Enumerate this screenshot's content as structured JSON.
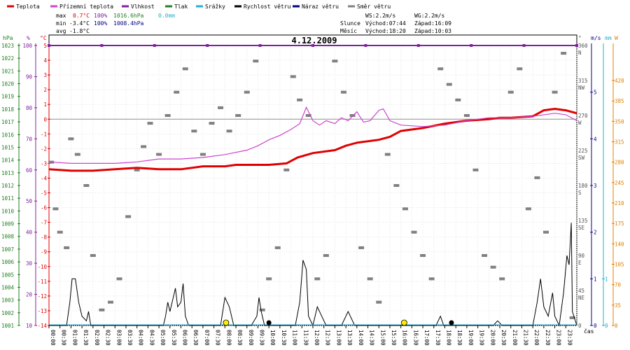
{
  "legend": [
    {
      "label": "Teplota",
      "color": "#e00000"
    },
    {
      "label": "Přízemní teplota",
      "color": "#cc44cc"
    },
    {
      "label": "Vlhkost",
      "color": "#8020a0"
    },
    {
      "label": "Tlak",
      "color": "#208020"
    },
    {
      "label": "Srážky",
      "color": "#20b0d0"
    },
    {
      "label": "Rychlost větru",
      "color": "#000000"
    },
    {
      "label": "Náraz větru",
      "color": "#000080"
    },
    {
      "label": "Směr větru",
      "color": "#808080"
    }
  ],
  "stats": {
    "max_label": "max",
    "max_temp": "0.7°C",
    "max_hum": "100%",
    "max_press": "1016.6hPa",
    "max_rain": "0.0mm",
    "min_label": "min",
    "min_temp": "-3.4°C",
    "min_hum": "100%",
    "min_press": "1008.4hPa",
    "avg_label": "avg",
    "avg_temp": "-1.8°C"
  },
  "wind_info": {
    "ws": "WS:2.2m/s",
    "wg": "WG:2.2m/s"
  },
  "astro": {
    "sun_label": "Slunce",
    "sun_rise": "Východ:07:44",
    "sun_set": "Západ:16:09",
    "moon_label": "Měsíc",
    "moon_rise": "Východ:18:20",
    "moon_set": "Západ:10:03"
  },
  "axis_units": {
    "hpa": "hPa",
    "pct": "%",
    "degc": "°C",
    "deg": "°",
    "ms": "m/s",
    "mm": "mm",
    "w": "W",
    "time": "čas"
  },
  "colors": {
    "temp": "#e00000",
    "ground": "#cc44cc",
    "humidity": "#8020a0",
    "pressure": "#208020",
    "rain": "#20b0d0",
    "wind": "#000000",
    "gust": "#000080",
    "dir": "#808080",
    "solar": "#e08000"
  },
  "chart_data": {
    "type": "line",
    "title": "4.12.2009",
    "xlabel": "čas",
    "x_range_hours": [
      0,
      24
    ],
    "x_ticks": [
      "00:00",
      "00:30",
      "01:00",
      "01:30",
      "02:00",
      "02:30",
      "03:00",
      "03:30",
      "04:00",
      "04:30",
      "05:00",
      "05:30",
      "06:00",
      "06:30",
      "07:00",
      "07:30",
      "08:00",
      "08:30",
      "09:00",
      "09:30",
      "10:00",
      "10:30",
      "11:00",
      "11:30",
      "12:00",
      "12:30",
      "13:00",
      "13:30",
      "14:00",
      "14:30",
      "15:00",
      "15:30",
      "16:00",
      "16:30",
      "17:00",
      "17:30",
      "18:00",
      "18:30",
      "19:00",
      "19:30",
      "20:00",
      "20:30",
      "21:00",
      "21:30",
      "22:00",
      "22:30",
      "23:00",
      "23:30"
    ],
    "temp_axis": {
      "min": -14,
      "max": 5,
      "ticks": [
        5,
        4,
        3,
        2,
        1,
        0,
        -1,
        -2,
        -3,
        -4,
        -5,
        -6,
        -7,
        -8,
        -9,
        -10,
        -11,
        -12,
        -13,
        -14
      ]
    },
    "pressure_axis": {
      "min": 1001,
      "max": 1023,
      "ticks": [
        1023,
        1022,
        1021,
        1020,
        1019,
        1018,
        1017,
        1016,
        1015,
        1014,
        1013,
        1012,
        1011,
        1010,
        1009,
        1008,
        1007,
        1006,
        1005,
        1004,
        1003,
        1002,
        1001
      ]
    },
    "humidity_axis": {
      "min": 10,
      "max": 100,
      "ticks": [
        100,
        90,
        80,
        70,
        60,
        50,
        40,
        30,
        20,
        10
      ]
    },
    "direction_axis": {
      "min": 0,
      "max": 360,
      "ticks": [
        {
          "value": 360,
          "label": "360",
          "compass": "N"
        },
        {
          "value": 315,
          "label": "315",
          "compass": "NW"
        },
        {
          "value": 270,
          "label": "270",
          "compass": "W"
        },
        {
          "value": 225,
          "label": "225",
          "compass": "SW"
        },
        {
          "value": 180,
          "label": "180",
          "compass": "S"
        },
        {
          "value": 135,
          "label": "135",
          "compass": "SE"
        },
        {
          "value": 90,
          "label": "90",
          "compass": "E"
        },
        {
          "value": 45,
          "label": "45",
          "compass": "NE"
        },
        {
          "value": 0,
          "label": "0",
          "compass": ""
        }
      ]
    },
    "wind_axis": {
      "min": 0,
      "max": 6,
      "ticks": [
        0,
        1,
        2,
        3,
        4,
        5
      ]
    },
    "rain_axis": {
      "min": 0,
      "max": 6,
      "ticks": [
        0,
        1
      ]
    },
    "solar_axis": {
      "min": 0,
      "max": 480,
      "ticks": [
        0,
        35,
        70,
        105,
        140,
        175,
        210,
        245,
        280,
        315,
        350,
        385,
        420
      ]
    },
    "series": [
      {
        "name": "Teplota",
        "axis": "temp",
        "color": "#e00000",
        "points": [
          [
            0,
            -3.4
          ],
          [
            1,
            -3.5
          ],
          [
            2,
            -3.5
          ],
          [
            3,
            -3.4
          ],
          [
            4,
            -3.3
          ],
          [
            5,
            -3.4
          ],
          [
            6,
            -3.4
          ],
          [
            7,
            -3.2
          ],
          [
            8,
            -3.2
          ],
          [
            8.5,
            -3.1
          ],
          [
            9,
            -3.1
          ],
          [
            10,
            -3.1
          ],
          [
            10.8,
            -3.0
          ],
          [
            11.3,
            -2.6
          ],
          [
            12,
            -2.3
          ],
          [
            13,
            -2.1
          ],
          [
            13.5,
            -1.8
          ],
          [
            14,
            -1.6
          ],
          [
            15,
            -1.4
          ],
          [
            15.5,
            -1.2
          ],
          [
            16,
            -0.8
          ],
          [
            17,
            -0.6
          ],
          [
            18,
            -0.3
          ],
          [
            19,
            -0.1
          ],
          [
            20,
            0.0
          ],
          [
            20.5,
            0.1
          ],
          [
            21,
            0.1
          ],
          [
            22,
            0.2
          ],
          [
            22.5,
            0.6
          ],
          [
            23,
            0.7
          ],
          [
            23.5,
            0.6
          ],
          [
            24,
            0.4
          ]
        ]
      },
      {
        "name": "Přízemní teplota",
        "axis": "temp",
        "color": "#cc44cc",
        "points": [
          [
            0,
            -2.9
          ],
          [
            1,
            -3.0
          ],
          [
            2,
            -3.0
          ],
          [
            3,
            -3.0
          ],
          [
            4,
            -2.9
          ],
          [
            5,
            -2.7
          ],
          [
            6,
            -2.7
          ],
          [
            7,
            -2.6
          ],
          [
            8,
            -2.4
          ],
          [
            9,
            -2.1
          ],
          [
            9.5,
            -1.8
          ],
          [
            10,
            -1.4
          ],
          [
            10.5,
            -1.1
          ],
          [
            11,
            -0.7
          ],
          [
            11.4,
            -0.3
          ],
          [
            11.7,
            0.8
          ],
          [
            12,
            -0.1
          ],
          [
            12.3,
            -0.4
          ],
          [
            12.6,
            -0.1
          ],
          [
            13,
            -0.3
          ],
          [
            13.3,
            0.1
          ],
          [
            13.6,
            -0.1
          ],
          [
            14,
            0.5
          ],
          [
            14.3,
            -0.2
          ],
          [
            14.6,
            -0.1
          ],
          [
            15,
            0.6
          ],
          [
            15.2,
            0.7
          ],
          [
            15.5,
            -0.1
          ],
          [
            16,
            -0.4
          ],
          [
            17,
            -0.5
          ],
          [
            18,
            -0.4
          ],
          [
            19,
            -0.1
          ],
          [
            20,
            0.1
          ],
          [
            21,
            0.1
          ],
          [
            22,
            0.2
          ],
          [
            23,
            0.4
          ],
          [
            23.5,
            0.3
          ],
          [
            24,
            -0.1
          ]
        ]
      }
    ],
    "humidity": {
      "name": "Vlhkost",
      "value": 100
    },
    "wind_speed": {
      "name": "Rychlost větru",
      "points": [
        [
          0,
          0
        ],
        [
          0.8,
          0
        ],
        [
          0.95,
          0.5
        ],
        [
          1.05,
          1.0
        ],
        [
          1.2,
          1.0
        ],
        [
          1.35,
          0.5
        ],
        [
          1.5,
          0.2
        ],
        [
          1.7,
          0.1
        ],
        [
          1.8,
          0.3
        ],
        [
          1.9,
          0
        ],
        [
          2.2,
          0
        ],
        [
          3,
          0
        ],
        [
          5.2,
          0
        ],
        [
          5.3,
          0.2
        ],
        [
          5.4,
          0.5
        ],
        [
          5.5,
          0.3
        ],
        [
          5.65,
          0.6
        ],
        [
          5.75,
          0.8
        ],
        [
          5.85,
          0.4
        ],
        [
          6,
          0.5
        ],
        [
          6.1,
          0.9
        ],
        [
          6.2,
          0.2
        ],
        [
          6.35,
          0
        ],
        [
          7.8,
          0
        ],
        [
          8.0,
          0.6
        ],
        [
          8.2,
          0.4
        ],
        [
          8.4,
          0
        ],
        [
          9.2,
          0
        ],
        [
          9.45,
          0.2
        ],
        [
          9.55,
          0.6
        ],
        [
          9.65,
          0.3
        ],
        [
          9.8,
          0
        ],
        [
          11.2,
          0
        ],
        [
          11.4,
          0.5
        ],
        [
          11.55,
          1.4
        ],
        [
          11.7,
          1.2
        ],
        [
          11.8,
          0.2
        ],
        [
          12.0,
          0
        ],
        [
          12.2,
          0.4
        ],
        [
          12.4,
          0.2
        ],
        [
          12.6,
          0
        ],
        [
          13.3,
          0
        ],
        [
          13.6,
          0.3
        ],
        [
          13.9,
          0
        ],
        [
          17.6,
          0
        ],
        [
          17.8,
          0.2
        ],
        [
          17.95,
          0
        ],
        [
          20.2,
          0
        ],
        [
          20.4,
          0.1
        ],
        [
          20.6,
          0
        ],
        [
          22.0,
          0
        ],
        [
          22.2,
          0.5
        ],
        [
          22.35,
          1.0
        ],
        [
          22.5,
          0.4
        ],
        [
          22.7,
          0.2
        ],
        [
          22.9,
          0.7
        ],
        [
          23.0,
          0.2
        ],
        [
          23.2,
          0
        ],
        [
          23.4,
          0.7
        ],
        [
          23.55,
          1.5
        ],
        [
          23.65,
          1.3
        ],
        [
          23.75,
          2.2
        ],
        [
          23.8,
          0.3
        ],
        [
          24,
          0
        ]
      ]
    },
    "wind_gust": {
      "name": "Náraz větru"
    },
    "rain": {
      "name": "Srážky",
      "total": "0.0mm"
    },
    "wind_direction_samples": [
      [
        0.1,
        210
      ],
      [
        0.3,
        150
      ],
      [
        0.5,
        120
      ],
      [
        0.8,
        100
      ],
      [
        1.0,
        240
      ],
      [
        1.3,
        220
      ],
      [
        1.7,
        180
      ],
      [
        2.0,
        90
      ],
      [
        2.4,
        20
      ],
      [
        2.8,
        30
      ],
      [
        3.2,
        60
      ],
      [
        3.6,
        140
      ],
      [
        4.0,
        200
      ],
      [
        4.3,
        230
      ],
      [
        4.6,
        260
      ],
      [
        5.0,
        220
      ],
      [
        5.4,
        270
      ],
      [
        5.8,
        300
      ],
      [
        6.2,
        330
      ],
      [
        6.6,
        250
      ],
      [
        7.0,
        220
      ],
      [
        7.4,
        260
      ],
      [
        7.8,
        280
      ],
      [
        8.2,
        250
      ],
      [
        8.6,
        270
      ],
      [
        9.0,
        300
      ],
      [
        9.4,
        340
      ],
      [
        9.7,
        20
      ],
      [
        10.0,
        60
      ],
      [
        10.4,
        100
      ],
      [
        10.8,
        200
      ],
      [
        11.1,
        320
      ],
      [
        11.4,
        290
      ],
      [
        11.8,
        270
      ],
      [
        12.2,
        60
      ],
      [
        12.6,
        90
      ],
      [
        13.0,
        340
      ],
      [
        13.4,
        300
      ],
      [
        13.8,
        270
      ],
      [
        14.2,
        100
      ],
      [
        14.6,
        60
      ],
      [
        15.0,
        30
      ],
      [
        15.4,
        220
      ],
      [
        15.8,
        180
      ],
      [
        16.2,
        150
      ],
      [
        16.6,
        120
      ],
      [
        17.0,
        90
      ],
      [
        17.4,
        60
      ],
      [
        17.8,
        330
      ],
      [
        18.2,
        310
      ],
      [
        18.6,
        290
      ],
      [
        19.0,
        270
      ],
      [
        19.4,
        200
      ],
      [
        19.8,
        90
      ],
      [
        20.2,
        75
      ],
      [
        20.6,
        60
      ],
      [
        21.0,
        300
      ],
      [
        21.4,
        330
      ],
      [
        21.8,
        150
      ],
      [
        22.2,
        190
      ],
      [
        22.6,
        120
      ],
      [
        23.0,
        300
      ],
      [
        23.4,
        350
      ],
      [
        23.8,
        10
      ]
    ],
    "markers": [
      {
        "hour": 8.05,
        "type": "sun"
      },
      {
        "hour": 10.0,
        "type": "moon"
      },
      {
        "hour": 16.15,
        "type": "sun"
      },
      {
        "hour": 18.3,
        "type": "moon"
      }
    ]
  }
}
